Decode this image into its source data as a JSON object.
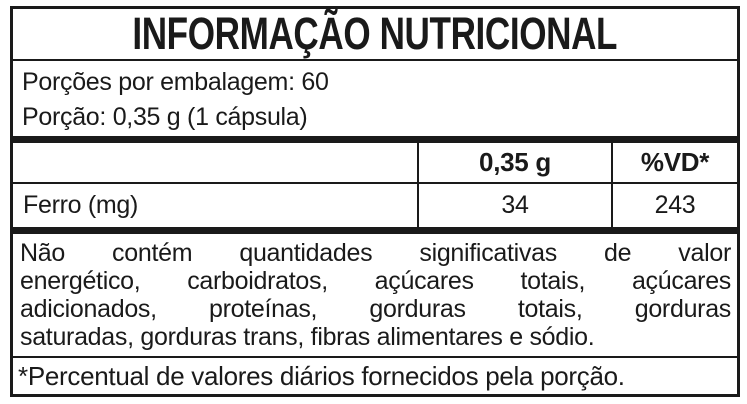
{
  "label": {
    "title": "INFORMAÇÃO NUTRICIONAL",
    "servings": {
      "per_package": "Porções por embalagem: 60",
      "portion": "Porção: 0,35 g (1 cápsula)"
    },
    "table": {
      "columns": [
        "",
        "0,35 g",
        "%VD*"
      ],
      "rows": [
        {
          "nutrient": "Ferro (mg)",
          "amount": "34",
          "vd": "243"
        }
      ]
    },
    "note_lines": [
      "Não contém quantidades significativas de valor",
      "energético, carboidratos, açúcares totais, açúcares",
      "adicionados, proteínas, gorduras totais, gorduras",
      "saturadas, gorduras trans, fibras alimentares e sódio."
    ],
    "footnote": "*Percentual de valores diários fornecidos pela porção.",
    "colors": {
      "border": "#1a1a1a",
      "text": "#1a1a1a",
      "background": "#ffffff"
    }
  }
}
